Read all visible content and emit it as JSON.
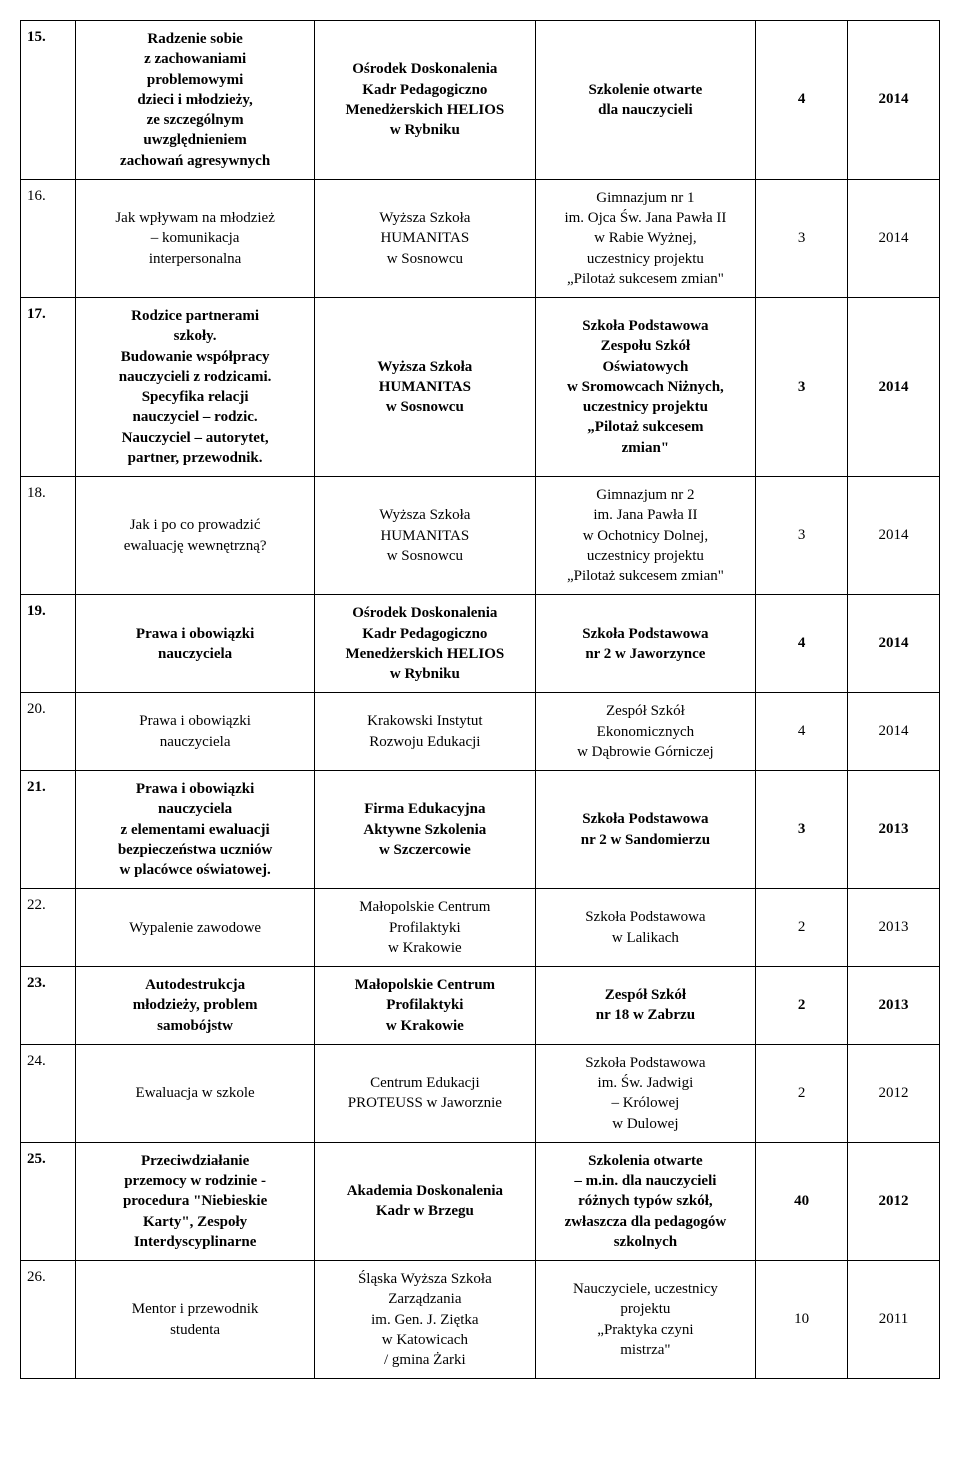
{
  "rows": [
    {
      "num": "15.",
      "topic": "Radzenie sobie\nz zachowaniami\nproblemowymi\ndzieci i młodzieży,\nze szczególnym\nuwzględnieniem\nzachowań agresywnych",
      "org": "Ośrodek Doskonalenia\nKadr Pedagogiczno\nMenedżerskich HELIOS\nw Rybniku",
      "target": "Szkolenie otwarte\ndla nauczycieli",
      "n": "4",
      "year": "2014",
      "bold": true
    },
    {
      "num": "16.",
      "topic": "Jak wpływam na młodzież\n– komunikacja\ninterpersonalna",
      "org": "Wyższa Szkoła\nHUMANITAS\nw Sosnowcu",
      "target": "Gimnazjum nr 1\nim. Ojca Św. Jana Pawła II\nw Rabie Wyżnej,\nuczestnicy projektu\n„Pilotaż sukcesem zmian\"",
      "n": "3",
      "year": "2014",
      "bold": false
    },
    {
      "num": "17.",
      "topic": "Rodzice partnerami\nszkoły.\nBudowanie współpracy\nnauczycieli z rodzicami.\nSpecyfika relacji\nnauczyciel – rodzic.\nNauczyciel – autorytet,\npartner, przewodnik.",
      "org": "Wyższa Szkoła\nHUMANITAS\nw Sosnowcu",
      "target": "Szkoła Podstawowa\nZespołu Szkół\nOświatowych\nw Sromowcach Niżnych,\nuczestnicy projektu\n„Pilotaż sukcesem\nzmian\"",
      "n": "3",
      "year": "2014",
      "bold": true
    },
    {
      "num": "18.",
      "topic": "Jak i po co prowadzić\newaluację wewnętrzną?",
      "org": "Wyższa Szkoła\nHUMANITAS\nw Sosnowcu",
      "target": "Gimnazjum nr 2\nim. Jana Pawła II\nw Ochotnicy Dolnej,\nuczestnicy projektu\n„Pilotaż sukcesem zmian\"",
      "n": "3",
      "year": "2014",
      "bold": false
    },
    {
      "num": "19.",
      "topic": "Prawa i obowiązki\nnauczyciela",
      "org": "Ośrodek Doskonalenia\nKadr Pedagogiczno\nMenedżerskich HELIOS\nw Rybniku",
      "target": "Szkoła Podstawowa\nnr 2 w Jaworzynce",
      "n": "4",
      "year": "2014",
      "bold": true
    },
    {
      "num": "20.",
      "topic": "Prawa i obowiązki\nnauczyciela",
      "org": "Krakowski Instytut\nRozwoju Edukacji",
      "target": "Zespół Szkół\nEkonomicznych\nw Dąbrowie Górniczej",
      "n": "4",
      "year": "2014",
      "bold": false
    },
    {
      "num": "21.",
      "topic": "Prawa i obowiązki\nnauczyciela\nz elementami ewaluacji\nbezpieczeństwa uczniów\nw placówce oświatowej.",
      "org": "Firma Edukacyjna\nAktywne Szkolenia\nw Szczercowie",
      "target": "Szkoła Podstawowa\nnr 2 w Sandomierzu",
      "n": "3",
      "year": "2013",
      "bold": true
    },
    {
      "num": "22.",
      "topic": "Wypalenie zawodowe",
      "org": "Małopolskie Centrum\nProfilaktyki\nw Krakowie",
      "target": "Szkoła Podstawowa\nw Lalikach",
      "n": "2",
      "year": "2013",
      "bold": false
    },
    {
      "num": "23.",
      "topic": "Autodestrukcja\nmłodzieży, problem\nsamobójstw",
      "org": "Małopolskie Centrum\nProfilaktyki\nw Krakowie",
      "target": "Zespół Szkół\nnr 18 w Zabrzu",
      "n": "2",
      "year": "2013",
      "bold": true
    },
    {
      "num": "24.",
      "topic": "Ewaluacja w szkole",
      "org": "Centrum Edukacji\nPROTEUSS w Jaworznie",
      "target": "Szkoła Podstawowa\nim. Św. Jadwigi\n– Królowej\nw Dulowej",
      "n": "2",
      "year": "2012",
      "bold": false
    },
    {
      "num": "25.",
      "topic": "Przeciwdziałanie\nprzemocy w rodzinie -\nprocedura \"Niebieskie\nKarty\", Zespoły\nInterdyscyplinarne",
      "org": "Akademia Doskonalenia\nKadr w Brzegu",
      "target": "Szkolenia otwarte\n– m.in. dla nauczycieli\nróżnych typów szkół,\nzwłaszcza dla pedagogów\nszkolnych",
      "n": "40",
      "year": "2012",
      "bold": true
    },
    {
      "num": "26.",
      "topic": "Mentor i przewodnik\nstudenta",
      "org": "Śląska Wyższa Szkoła\nZarządzania\nim. Gen. J. Ziętka\nw Katowicach\n/ gmina Żarki",
      "target": "Nauczyciele, uczestnicy\nprojektu\n„Praktyka czyni\nmistrza\"",
      "n": "10",
      "year": "2011",
      "bold": false
    }
  ]
}
